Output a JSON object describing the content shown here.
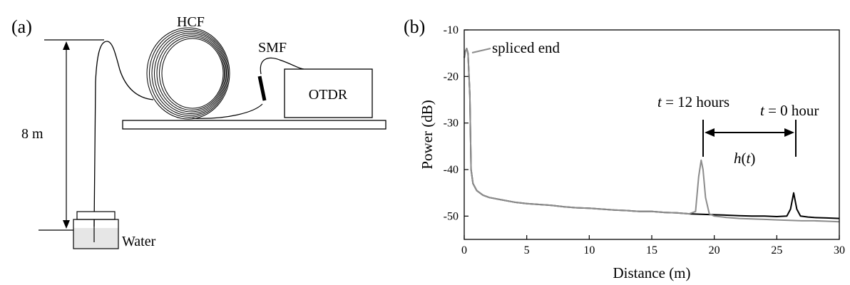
{
  "panel_a": {
    "label": "(a)",
    "height_label": "8 m",
    "hcf_label": "HCF",
    "smf_label": "SMF",
    "otdr_label": "OTDR",
    "water_label": "Water"
  },
  "panel_b": {
    "label": "(b)",
    "annotations": {
      "spliced_end": "spliced end",
      "t12_var": "t",
      "t12_rest": " = 12 hours",
      "t0_var": "t",
      "t0_rest": " = 0 hour",
      "h_label": "h",
      "h_arg_open": "(",
      "h_arg_var": "t",
      "h_arg_close": ")"
    }
  },
  "colors": {
    "trace_t0": "#000000",
    "trace_t12": "#8c8c8c",
    "water": "#e6e6e6"
  },
  "chart_data": {
    "type": "line",
    "xlabel": "Distance (m)",
    "ylabel": "Power (dB)",
    "xlim": [
      0,
      30
    ],
    "ylim": [
      -55,
      -10
    ],
    "xticks": [
      0,
      5,
      10,
      15,
      20,
      25,
      30
    ],
    "yticks": [
      -10,
      -20,
      -30,
      -40,
      -50
    ],
    "series": [
      {
        "key": "t0",
        "color": "#000000",
        "x": [
          0,
          0.1,
          0.2,
          0.3,
          0.45,
          0.55,
          0.7,
          1,
          1.5,
          2,
          3,
          4,
          5,
          6,
          7,
          8,
          9,
          10,
          11,
          12,
          13,
          14,
          15,
          16,
          17,
          18,
          19,
          20,
          21,
          22,
          23,
          24,
          25,
          25.8,
          26.1,
          26.35,
          26.6,
          26.9,
          27.5,
          28,
          29,
          30
        ],
        "y": [
          -16,
          -14.5,
          -14,
          -15,
          -24,
          -40,
          -43,
          -44.5,
          -45.5,
          -46,
          -46.5,
          -47,
          -47.3,
          -47.5,
          -47.7,
          -48,
          -48.2,
          -48.3,
          -48.5,
          -48.7,
          -48.8,
          -49,
          -49,
          -49.2,
          -49.3,
          -49.5,
          -49.6,
          -49.7,
          -49.8,
          -49.9,
          -50,
          -50,
          -50.1,
          -50,
          -48.5,
          -45,
          -48.5,
          -50,
          -50.2,
          -50.3,
          -50.4,
          -50.5
        ]
      },
      {
        "key": "t12",
        "color": "#8c8c8c",
        "x": [
          0,
          0.1,
          0.2,
          0.3,
          0.45,
          0.55,
          0.7,
          1,
          1.5,
          2,
          3,
          4,
          5,
          6,
          7,
          8,
          9,
          10,
          11,
          12,
          13,
          14,
          15,
          16,
          17,
          18,
          18.5,
          18.75,
          18.95,
          19.1,
          19.3,
          19.6,
          20,
          21,
          22,
          23,
          24,
          25,
          26,
          27,
          28,
          29,
          30
        ],
        "y": [
          -16,
          -14.5,
          -14,
          -15,
          -24,
          -40,
          -43,
          -44.5,
          -45.5,
          -46,
          -46.5,
          -47,
          -47.3,
          -47.5,
          -47.7,
          -48,
          -48.2,
          -48.3,
          -48.5,
          -48.7,
          -48.8,
          -49,
          -49,
          -49.2,
          -49.3,
          -49.5,
          -49,
          -41.5,
          -38,
          -40,
          -46,
          -49.5,
          -50,
          -50.3,
          -50.5,
          -50.6,
          -50.7,
          -50.8,
          -50.9,
          -51,
          -51,
          -51.1,
          -51.2
        ]
      }
    ]
  }
}
